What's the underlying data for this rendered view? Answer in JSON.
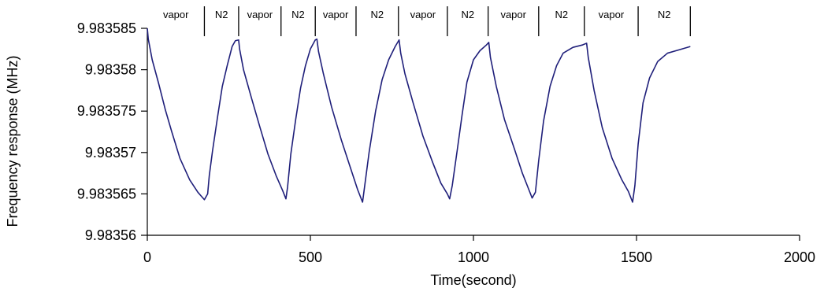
{
  "chart_data": {
    "type": "line",
    "title": "",
    "xlabel": "Time(second)",
    "ylabel": "Frequency response (MHz)",
    "xlim": [
      0,
      2000
    ],
    "ylim": [
      9.98356,
      9.983585
    ],
    "x_ticks": [
      0,
      500,
      1000,
      1500,
      2000
    ],
    "x_tick_labels": [
      "0",
      "500",
      "1000",
      "1500",
      "2000"
    ],
    "y_ticks": [
      9.98356,
      9.983565,
      9.98357,
      9.983575,
      9.98358,
      9.983585
    ],
    "y_tick_labels": [
      "9.98356",
      "9.983565",
      "9.98357",
      "9.983575",
      "9.98358",
      "9.983585"
    ],
    "grid": false,
    "line_color": "#1f1f7a",
    "phases": [
      {
        "label": "vapor",
        "start": 0,
        "end": 175
      },
      {
        "label": "N2",
        "start": 175,
        "end": 280
      },
      {
        "label": "vapor",
        "start": 280,
        "end": 410
      },
      {
        "label": "N2",
        "start": 410,
        "end": 515
      },
      {
        "label": "vapor",
        "start": 515,
        "end": 640
      },
      {
        "label": "N2",
        "start": 640,
        "end": 770
      },
      {
        "label": "vapor",
        "start": 770,
        "end": 920
      },
      {
        "label": "N2",
        "start": 920,
        "end": 1045
      },
      {
        "label": "vapor",
        "start": 1045,
        "end": 1200
      },
      {
        "label": "N2",
        "start": 1200,
        "end": 1340
      },
      {
        "label": "vapor",
        "start": 1340,
        "end": 1505
      },
      {
        "label": "N2",
        "start": 1505,
        "end": 1665
      }
    ],
    "series": [
      {
        "points": [
          [
            0,
            9.983585
          ],
          [
            3,
            9.9835837
          ],
          [
            15,
            9.9835812
          ],
          [
            35,
            9.9835783
          ],
          [
            55,
            9.9835752
          ],
          [
            75,
            9.9835725
          ],
          [
            100,
            9.9835693
          ],
          [
            130,
            9.9835667
          ],
          [
            155,
            9.9835652
          ],
          [
            175,
            9.9835643
          ],
          [
            185,
            9.983565
          ],
          [
            190,
            9.9835672
          ],
          [
            200,
            9.9835702
          ],
          [
            215,
            9.9835742
          ],
          [
            230,
            9.983578
          ],
          [
            245,
            9.9835805
          ],
          [
            260,
            9.9835828
          ],
          [
            270,
            9.9835835
          ],
          [
            280,
            9.9835836
          ],
          [
            283,
            9.9835825
          ],
          [
            295,
            9.98358
          ],
          [
            320,
            9.9835765
          ],
          [
            345,
            9.9835731
          ],
          [
            370,
            9.9835698
          ],
          [
            395,
            9.9835672
          ],
          [
            415,
            9.9835654
          ],
          [
            425,
            9.9835644
          ],
          [
            430,
            9.9835658
          ],
          [
            440,
            9.9835698
          ],
          [
            455,
            9.983574
          ],
          [
            470,
            9.9835778
          ],
          [
            485,
            9.9835805
          ],
          [
            500,
            9.9835825
          ],
          [
            515,
            9.9835836
          ],
          [
            520,
            9.9835837
          ],
          [
            525,
            9.9835822
          ],
          [
            540,
            9.9835795
          ],
          [
            565,
            9.9835755
          ],
          [
            595,
            9.9835715
          ],
          [
            620,
            9.9835685
          ],
          [
            645,
            9.9835655
          ],
          [
            660,
            9.983564
          ],
          [
            665,
            9.9835655
          ],
          [
            680,
            9.98357
          ],
          [
            700,
            9.983575
          ],
          [
            720,
            9.9835788
          ],
          [
            740,
            9.9835812
          ],
          [
            760,
            9.9835828
          ],
          [
            772,
            9.9835836
          ],
          [
            777,
            9.983582
          ],
          [
            790,
            9.9835795
          ],
          [
            815,
            9.983576
          ],
          [
            845,
            9.983572
          ],
          [
            875,
            9.9835688
          ],
          [
            900,
            9.9835663
          ],
          [
            920,
            9.983565
          ],
          [
            927,
            9.9835644
          ],
          [
            935,
            9.983566
          ],
          [
            950,
            9.9835702
          ],
          [
            965,
            9.9835745
          ],
          [
            980,
            9.9835785
          ],
          [
            1000,
            9.9835812
          ],
          [
            1020,
            9.9835823
          ],
          [
            1040,
            9.983583
          ],
          [
            1047,
            9.9835833
          ],
          [
            1052,
            9.9835815
          ],
          [
            1070,
            9.983578
          ],
          [
            1095,
            9.983574
          ],
          [
            1125,
            9.9835705
          ],
          [
            1150,
            9.9835675
          ],
          [
            1170,
            9.9835655
          ],
          [
            1180,
            9.9835645
          ],
          [
            1190,
            9.9835652
          ],
          [
            1200,
            9.983569
          ],
          [
            1215,
            9.9835738
          ],
          [
            1235,
            9.983578
          ],
          [
            1255,
            9.9835805
          ],
          [
            1275,
            9.983582
          ],
          [
            1305,
            9.9835827
          ],
          [
            1335,
            9.983583
          ],
          [
            1347,
            9.9835832
          ],
          [
            1352,
            9.9835815
          ],
          [
            1370,
            9.9835775
          ],
          [
            1395,
            9.983573
          ],
          [
            1425,
            9.9835693
          ],
          [
            1455,
            9.9835667
          ],
          [
            1475,
            9.9835653
          ],
          [
            1488,
            9.983564
          ],
          [
            1495,
            9.983566
          ],
          [
            1505,
            9.983571
          ],
          [
            1520,
            9.983576
          ],
          [
            1540,
            9.983579
          ],
          [
            1565,
            9.983581
          ],
          [
            1595,
            9.983582
          ],
          [
            1630,
            9.9835824
          ],
          [
            1665,
            9.9835828
          ]
        ]
      }
    ]
  }
}
